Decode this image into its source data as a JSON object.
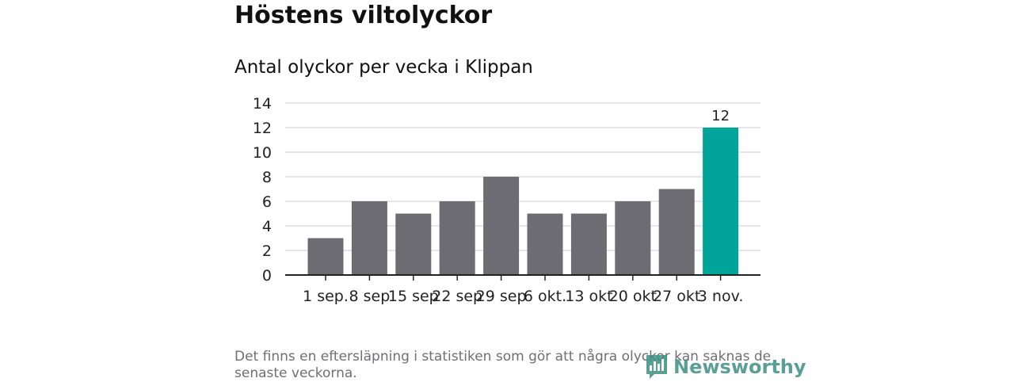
{
  "title": "Höstens viltolyckor",
  "subtitle": "Antal olyckor per vecka i Klippan",
  "footnote": "Det finns en eftersläpning i statistiken som gör att några olyckor kan saknas de senaste veckorna.",
  "logo_text": "Newsworthy",
  "colors": {
    "bar": "#6d6c72",
    "highlight": "#00a499",
    "grid": "#dddddd",
    "axis": "#222222",
    "logo": "#3d8f84"
  },
  "chart_data": {
    "type": "bar",
    "title": "Antal olyckor per vecka i Klippan",
    "xlabel": "",
    "ylabel": "",
    "categories": [
      "1 sep.",
      "8 sep",
      "15 sep",
      "22 sep",
      "29 sep",
      "6 okt.",
      "13 okt",
      "20 okt",
      "27 okt",
      "3 nov."
    ],
    "values": [
      3,
      6,
      5,
      6,
      8,
      5,
      5,
      6,
      7,
      12
    ],
    "highlight_index": 9,
    "data_labels": [
      {
        "index": 9,
        "text": "12"
      }
    ],
    "ylim": [
      0,
      14
    ],
    "yticks": [
      0,
      2,
      4,
      6,
      8,
      10,
      12,
      14
    ],
    "grid": true,
    "legend": "none"
  }
}
